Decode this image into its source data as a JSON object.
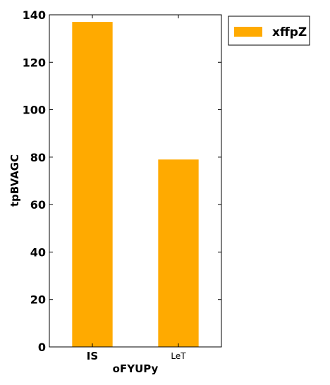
{
  "chart_data": {
    "type": "bar",
    "categories": [
      "IS",
      "LeT"
    ],
    "series": [
      {
        "name": "xffpZ",
        "values": [
          137,
          79
        ],
        "color": "#FFAA00"
      }
    ],
    "xlabel": "oFYUPy",
    "ylabel": "tpBVAGC",
    "ylim": [
      0,
      140
    ],
    "yticks": [
      "0",
      "20",
      "40",
      "60",
      "80",
      "100",
      "120",
      "140"
    ],
    "grid": false,
    "legend_position": "outside-top-right"
  }
}
